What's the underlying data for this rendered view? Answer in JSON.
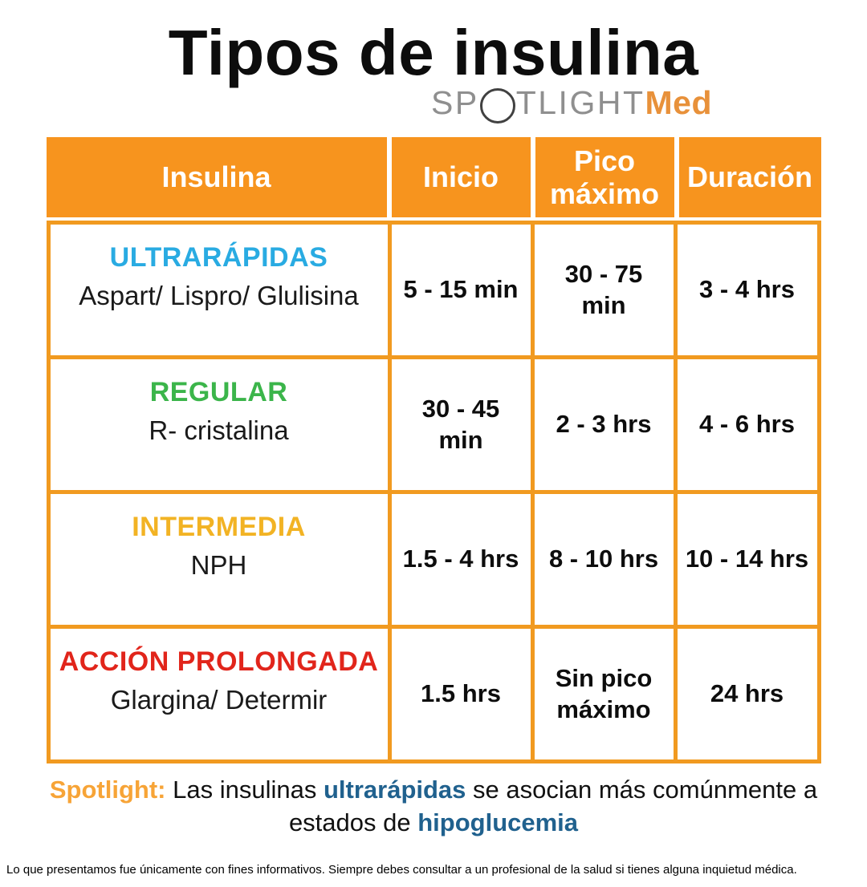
{
  "title": "Tipos de insulina",
  "logo": {
    "prefix": "SP",
    "middle": "TLIGHT",
    "suffix": "Med"
  },
  "table": {
    "headers": [
      "Insulina",
      "Inicio",
      "Pico máximo",
      "Duración"
    ],
    "rows": [
      {
        "category": "ULTRARÁPIDAS",
        "color": "#29abe2",
        "names": "Aspart/ Lispro/ Glulisina",
        "inicio": "5 - 15 min",
        "pico": "30 - 75 min",
        "duracion": "3 - 4 hrs"
      },
      {
        "category": "REGULAR",
        "color": "#3bb54a",
        "names": "R- cristalina",
        "inicio": "30 - 45 min",
        "pico": "2 - 3 hrs",
        "duracion": "4 - 6 hrs"
      },
      {
        "category": "INTERMEDIA",
        "color": "#f2b324",
        "names": "NPH",
        "inicio": "1.5 - 4 hrs",
        "pico": "8 - 10 hrs",
        "duracion": "10 - 14 hrs"
      },
      {
        "category": "ACCIÓN PROLONGADA",
        "color": "#e1251b",
        "names": "Glargina/ Determir",
        "inicio": "1.5 hrs",
        "pico": "Sin pico máximo",
        "duracion": "24 hrs"
      }
    ]
  },
  "spotlight": {
    "label": "Spotlight:",
    "line1_text1": "Las insulinas",
    "line1_highlight": "ultrarápidas",
    "line1_text2": "se asocian más comúnmente a",
    "line2_text": "estados de",
    "line2_highlight": "hipoglucemia"
  },
  "disclaimer": "Lo que presentamos fue únicamente con fines informativos. Siempre debes consultar a un profesional de la salud si tienes alguna inquietud médica.",
  "colors": {
    "header_orange": "#f7941e",
    "grid_line_orange": "#f19a20",
    "ultrarapidas_blue": "#29abe2",
    "regular_green": "#3bb54a",
    "intermedia_yellow": "#f2b324",
    "accion_prolongada_red": "#e1251b",
    "spotlight_orange": "#f7a437",
    "highlight_steel_blue": "#20618e",
    "logo_gray": "#8f8f8f",
    "logo_orange": "#e8913a"
  },
  "chart_data": {
    "type": "table",
    "title": "Tipos de insulina",
    "columns": [
      "Insulina",
      "Inicio",
      "Pico máximo",
      "Duración"
    ],
    "rows": [
      [
        "ULTRARÁPIDAS — Aspart/ Lispro/ Glulisina",
        "5 - 15 min",
        "30 - 75 min",
        "3 - 4 hrs"
      ],
      [
        "REGULAR — R- cristalina",
        "30 - 45 min",
        "2 - 3 hrs",
        "4 - 6 hrs"
      ],
      [
        "INTERMEDIA — NPH",
        "1.5 - 4 hrs",
        "8 - 10 hrs",
        "10 - 14 hrs"
      ],
      [
        "ACCIÓN PROLONGADA — Glargina/ Determir",
        "1.5 hrs",
        "Sin pico máximo",
        "24 hrs"
      ]
    ]
  }
}
